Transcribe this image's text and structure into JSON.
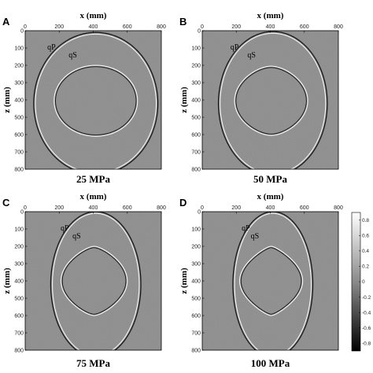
{
  "figure": {
    "x_axis_title": "x (mm)",
    "z_axis_title": "z (mm)",
    "x_ticks": [
      "0",
      "200",
      "400",
      "600",
      "800"
    ],
    "z_ticks": [
      "0",
      "100",
      "200",
      "300",
      "400",
      "500",
      "600",
      "700",
      "800"
    ],
    "wave_labels": {
      "qp": "qP",
      "qs": "qS"
    },
    "background_gray": "#8e8e8e",
    "panels": [
      {
        "letter": "A",
        "caption": "25 MPa",
        "qp": {
          "cx": 415,
          "cz": 420,
          "rx": 365,
          "rz": 410
        },
        "qs": {
          "cx": 415,
          "cz": 405,
          "rx": 245,
          "rz": 205,
          "cusp": 0.0
        }
      },
      {
        "letter": "B",
        "caption": "50 MPa",
        "qp": {
          "cx": 415,
          "cz": 420,
          "rx": 320,
          "rz": 415
        },
        "qs": {
          "cx": 405,
          "cz": 405,
          "rx": 215,
          "rz": 200,
          "cusp": 0.35
        }
      },
      {
        "letter": "C",
        "caption": "75 MPa",
        "qp": {
          "cx": 415,
          "cz": 420,
          "rx": 265,
          "rz": 420
        },
        "qs": {
          "cx": 405,
          "cz": 400,
          "rx": 195,
          "rz": 200,
          "cusp": 0.75
        }
      },
      {
        "letter": "D",
        "caption": "100 MPa",
        "qp": {
          "cx": 415,
          "cz": 420,
          "rx": 235,
          "rz": 420
        },
        "qs": {
          "cx": 405,
          "cz": 400,
          "rx": 185,
          "rz": 200,
          "cusp": 1.0
        }
      }
    ],
    "colorbar": {
      "ticks": [
        "0.8",
        "0.6",
        "0.4",
        "0.2",
        "0",
        "-0.2",
        "-0.4",
        "-0.6",
        "-0.8"
      ],
      "range": [
        -0.9,
        0.9
      ],
      "top_color": "#ffffff",
      "bottom_color": "#000000"
    }
  }
}
